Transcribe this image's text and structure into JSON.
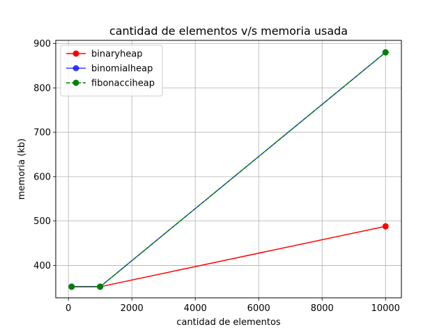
{
  "chart_data": {
    "type": "line",
    "title": "cantidad de elementos v/s memoria usada",
    "xlabel": "cantidad de elementos",
    "ylabel": "memoria (kb)",
    "x": [
      100,
      1000,
      10000
    ],
    "xlim": [
      -400,
      10500
    ],
    "ylim": [
      327,
      907
    ],
    "xticks": [
      0,
      2000,
      4000,
      6000,
      8000,
      10000
    ],
    "yticks": [
      400,
      500,
      600,
      700,
      800,
      900
    ],
    "grid": true,
    "legend_position": "upper-left",
    "series": [
      {
        "name": "binaryheap",
        "values": [
          352,
          352,
          488
        ],
        "color": "#ff0000",
        "dash": "solid",
        "marker": "circle"
      },
      {
        "name": "binomialheap",
        "values": [
          352,
          352,
          880
        ],
        "color": "#0000ff",
        "dash": "solid",
        "marker": "circle",
        "alpha": 0.75
      },
      {
        "name": "fibonacciheap",
        "values": [
          352,
          352,
          880
        ],
        "color": "#008000",
        "dash": "dashed",
        "marker": "circle"
      }
    ]
  }
}
